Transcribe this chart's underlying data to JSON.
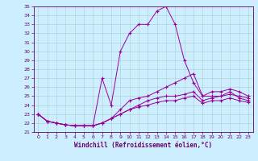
{
  "xlabel": "Windchill (Refroidissement éolien,°C)",
  "xlim": [
    -0.5,
    23.5
  ],
  "ylim": [
    21,
    35
  ],
  "yticks": [
    21,
    22,
    23,
    24,
    25,
    26,
    27,
    28,
    29,
    30,
    31,
    32,
    33,
    34,
    35
  ],
  "xticks": [
    0,
    1,
    2,
    3,
    4,
    5,
    6,
    7,
    8,
    9,
    10,
    11,
    12,
    13,
    14,
    15,
    16,
    17,
    18,
    19,
    20,
    21,
    22,
    23
  ],
  "bg_color": "#cceeff",
  "line_color": "#990099",
  "grid_color": "#aacccc",
  "series": [
    [
      23.0,
      22.2,
      22.0,
      21.8,
      21.7,
      21.7,
      21.7,
      27.0,
      24.0,
      30.0,
      32.0,
      33.0,
      33.0,
      34.5,
      35.0,
      33.0,
      29.0,
      26.5,
      25.0,
      25.0,
      25.0,
      25.5,
      24.8,
      24.5
    ],
    [
      23.0,
      22.2,
      22.0,
      21.8,
      21.7,
      21.7,
      21.7,
      22.0,
      22.5,
      23.5,
      24.5,
      24.8,
      25.0,
      25.5,
      26.0,
      26.5,
      27.0,
      27.5,
      25.0,
      25.5,
      25.5,
      25.8,
      25.5,
      25.0
    ],
    [
      23.0,
      22.2,
      22.0,
      21.8,
      21.7,
      21.7,
      21.7,
      22.0,
      22.5,
      23.0,
      23.5,
      24.0,
      24.5,
      24.8,
      25.0,
      25.0,
      25.2,
      25.5,
      24.5,
      24.8,
      25.0,
      25.2,
      25.0,
      24.8
    ],
    [
      23.0,
      22.2,
      22.0,
      21.8,
      21.7,
      21.7,
      21.7,
      22.0,
      22.5,
      23.0,
      23.5,
      23.8,
      24.0,
      24.3,
      24.5,
      24.5,
      24.8,
      25.0,
      24.2,
      24.5,
      24.5,
      24.8,
      24.5,
      24.3
    ]
  ]
}
